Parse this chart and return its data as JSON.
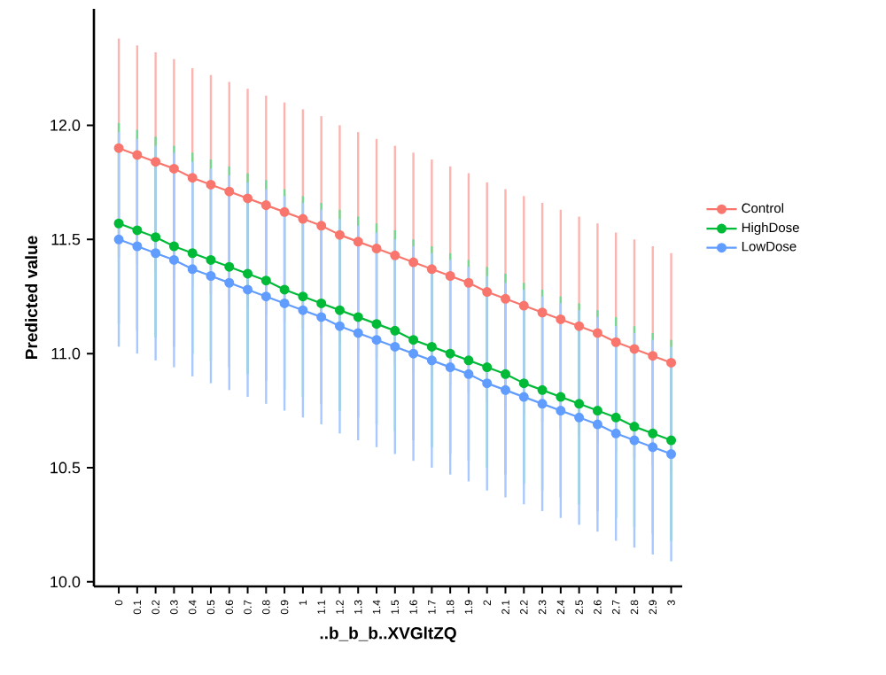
{
  "chart_data": {
    "type": "line",
    "xlabel": "..b_b_b..XVGltZQ",
    "ylabel": "Predicted value",
    "categories": [
      "0",
      "0.1",
      "0.2",
      "0.3",
      "0.4",
      "0.5",
      "0.6",
      "0.7",
      "0.8",
      "0.9",
      "1",
      "1.1",
      "1.2",
      "1.3",
      "1.4",
      "1.5",
      "1.6",
      "1.7",
      "1.8",
      "1.9",
      "2",
      "2.1",
      "2.2",
      "2.3",
      "2.4",
      "2.5",
      "2.6",
      "2.7",
      "2.8",
      "2.9",
      "3"
    ],
    "series": [
      {
        "name": "Control",
        "color": "#f8766d",
        "values": [
          11.9,
          11.87,
          11.84,
          11.81,
          11.77,
          11.74,
          11.71,
          11.68,
          11.65,
          11.62,
          11.59,
          11.56,
          11.52,
          11.49,
          11.46,
          11.43,
          11.4,
          11.37,
          11.34,
          11.31,
          11.27,
          11.24,
          11.21,
          11.18,
          11.15,
          11.12,
          11.09,
          11.05,
          11.02,
          10.99,
          10.96
        ],
        "errors": [
          0.48,
          0.48,
          0.48,
          0.48,
          0.48,
          0.48,
          0.48,
          0.48,
          0.48,
          0.48,
          0.48,
          0.48,
          0.48,
          0.48,
          0.48,
          0.48,
          0.48,
          0.48,
          0.48,
          0.48,
          0.48,
          0.48,
          0.48,
          0.48,
          0.48,
          0.48,
          0.48,
          0.48,
          0.48,
          0.48,
          0.48
        ]
      },
      {
        "name": "HighDose",
        "color": "#00ba38",
        "values": [
          11.57,
          11.54,
          11.51,
          11.47,
          11.44,
          11.41,
          11.38,
          11.35,
          11.32,
          11.28,
          11.25,
          11.22,
          11.19,
          11.16,
          11.13,
          11.1,
          11.06,
          11.03,
          11.0,
          10.97,
          10.94,
          10.91,
          10.87,
          10.84,
          10.81,
          10.78,
          10.75,
          10.72,
          10.68,
          10.65,
          10.62
        ],
        "errors": [
          0.44,
          0.44,
          0.44,
          0.44,
          0.44,
          0.44,
          0.44,
          0.44,
          0.44,
          0.44,
          0.44,
          0.44,
          0.44,
          0.44,
          0.44,
          0.44,
          0.44,
          0.44,
          0.44,
          0.44,
          0.44,
          0.44,
          0.44,
          0.44,
          0.44,
          0.44,
          0.44,
          0.44,
          0.44,
          0.44,
          0.44
        ]
      },
      {
        "name": "LowDose",
        "color": "#619cff",
        "values": [
          11.5,
          11.47,
          11.44,
          11.41,
          11.37,
          11.34,
          11.31,
          11.28,
          11.25,
          11.22,
          11.19,
          11.16,
          11.12,
          11.09,
          11.06,
          11.03,
          11.0,
          10.97,
          10.94,
          10.91,
          10.87,
          10.84,
          10.81,
          10.78,
          10.75,
          10.72,
          10.69,
          10.65,
          10.62,
          10.59,
          10.56
        ],
        "errors": [
          0.47,
          0.47,
          0.47,
          0.47,
          0.47,
          0.47,
          0.47,
          0.47,
          0.47,
          0.47,
          0.47,
          0.47,
          0.47,
          0.47,
          0.47,
          0.47,
          0.47,
          0.47,
          0.47,
          0.47,
          0.47,
          0.47,
          0.47,
          0.47,
          0.47,
          0.47,
          0.47,
          0.47,
          0.47,
          0.47,
          0.47
        ]
      }
    ],
    "ylim": [
      9.98,
      12.51
    ],
    "yticks": [
      {
        "value": 10,
        "label": "10.0"
      },
      {
        "value": 10.5,
        "label": "10.5"
      },
      {
        "value": 11,
        "label": "11.0"
      },
      {
        "value": 11.5,
        "label": "11.5"
      },
      {
        "value": 12,
        "label": "12.0"
      }
    ],
    "grid": false,
    "legend": "right",
    "marker": "circle",
    "line_style": "solid"
  }
}
